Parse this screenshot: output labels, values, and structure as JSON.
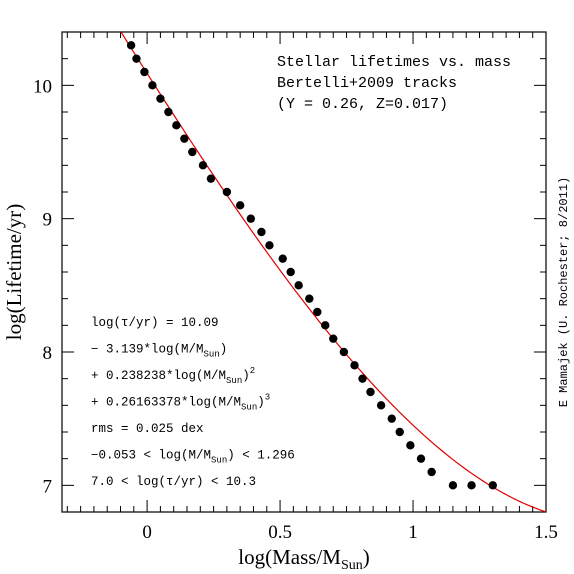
{
  "chart_data": {
    "type": "scatter",
    "title_lines": [
      "Stellar lifetimes vs. mass",
      "Bertelli+2009 tracks",
      "(Y = 0.26, Z=0.017)"
    ],
    "xlabel_prefix": "log(Mass/M",
    "xlabel_sub": "Sun",
    "xlabel_suffix": ")",
    "ylabel": "log(Lifetime/yr)",
    "credit": "E Mamajek (U. Rochester; 8/2011)",
    "xlim": [
      -0.32,
      1.5
    ],
    "ylim": [
      6.8,
      10.4
    ],
    "x_ticks": [
      {
        "value": 0,
        "label": "0"
      },
      {
        "value": 0.5,
        "label": "0.5"
      },
      {
        "value": 1,
        "label": "1"
      },
      {
        "value": 1.5,
        "label": "1.5"
      }
    ],
    "y_ticks": [
      {
        "value": 7,
        "label": "7"
      },
      {
        "value": 8,
        "label": "8"
      },
      {
        "value": 9,
        "label": "9"
      },
      {
        "value": 10,
        "label": "10"
      }
    ],
    "fit": {
      "color": "#e00000",
      "coefficients": [
        10.09,
        -3.139,
        0.238238,
        0.26163378
      ],
      "x_range": [
        -0.32,
        1.5
      ]
    },
    "series": [
      {
        "color": "#000000",
        "x": [
          -0.06,
          -0.04,
          -0.01,
          0.02,
          0.05,
          0.08,
          0.11,
          0.14,
          0.17,
          0.21,
          0.24,
          0.3,
          0.35,
          0.39,
          0.43,
          0.46,
          0.51,
          0.54,
          0.57,
          0.61,
          0.64,
          0.67,
          0.7,
          0.74,
          0.78,
          0.81,
          0.84,
          0.88,
          0.92,
          0.95,
          0.99,
          1.03,
          1.07,
          1.15,
          1.22,
          1.3
        ],
        "y": [
          10.3,
          10.2,
          10.1,
          10.0,
          9.9,
          9.8,
          9.7,
          9.6,
          9.5,
          9.4,
          9.3,
          9.2,
          9.1,
          9.0,
          8.9,
          8.8,
          8.7,
          8.6,
          8.5,
          8.4,
          8.3,
          8.2,
          8.1,
          8.0,
          7.9,
          7.8,
          7.7,
          7.6,
          7.5,
          7.4,
          7.3,
          7.2,
          7.1,
          7.0,
          7.0,
          7.0
        ]
      }
    ],
    "annotation": {
      "lines": [
        {
          "parts": [
            {
              "t": "log(τ/yr) = 10.09"
            }
          ]
        },
        {
          "parts": [
            {
              "t": "− 3.139*log(M/M"
            },
            {
              "t": "Sun",
              "sub": true
            },
            {
              "t": ")"
            }
          ]
        },
        {
          "parts": [
            {
              "t": "+ 0.238238*log(M/M"
            },
            {
              "t": "Sun",
              "sub": true
            },
            {
              "t": ")"
            },
            {
              "t": "2",
              "sup": true
            }
          ]
        },
        {
          "parts": [
            {
              "t": "+ 0.26163378*log(M/M"
            },
            {
              "t": "Sun",
              "sub": true
            },
            {
              "t": ")"
            },
            {
              "t": "3",
              "sup": true
            }
          ]
        },
        {
          "parts": [
            {
              "t": "rms = 0.025 dex"
            }
          ]
        },
        {
          "parts": [
            {
              "t": "−0.053 < log(M/M"
            },
            {
              "t": "Sun",
              "sub": true
            },
            {
              "t": ") < 1.296"
            }
          ]
        },
        {
          "parts": [
            {
              "t": "7.0 < log(τ/yr) < 10.3"
            }
          ]
        }
      ]
    }
  }
}
